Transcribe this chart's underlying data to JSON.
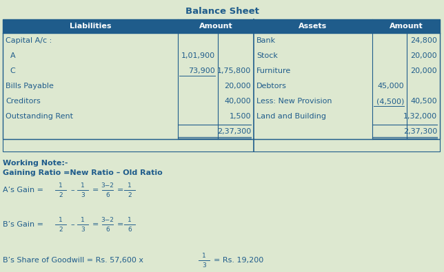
{
  "title": "Balance Sheet",
  "bg_color": "#dde8d0",
  "header_bg": "#1f5c8b",
  "header_fg": "#ffffff",
  "cell_bg": "#dde8d0",
  "border_color": "#1f5c8b",
  "text_color": "#1f5c8b",
  "title_color": "#1c3f5e",
  "font_size_table": 8.0,
  "font_size_title": 9.5,
  "liabilities_rows": [
    {
      "label": "Capital A/c :",
      "col1": "",
      "col2": ""
    },
    {
      "label": "  A",
      "col1": "1,01,900",
      "col2": ""
    },
    {
      "label": "  C",
      "col1": "73,900",
      "col2": "1,75,800"
    },
    {
      "label": "Bills Payable",
      "col1": "",
      "col2": "20,000"
    },
    {
      "label": "Creditors",
      "col1": "",
      "col2": "40,000"
    },
    {
      "label": "Outstanding Rent",
      "col1": "",
      "col2": "1,500"
    },
    {
      "label": "",
      "col1": "",
      "col2": "2,37,300"
    }
  ],
  "assets_rows": [
    {
      "label": "Bank",
      "col1": "",
      "col2": "24,800"
    },
    {
      "label": "Stock",
      "col1": "",
      "col2": "20,000"
    },
    {
      "label": "Furniture",
      "col1": "",
      "col2": "20,000"
    },
    {
      "label": "Debtors",
      "col1": "45,000",
      "col2": ""
    },
    {
      "label": "Less: New Provision",
      "col1": "(4,500)",
      "col2": "40,500"
    },
    {
      "label": "Land and Building",
      "col1": "",
      "col2": "1,32,000"
    },
    {
      "label": "",
      "col1": "",
      "col2": "2,37,300"
    }
  ]
}
